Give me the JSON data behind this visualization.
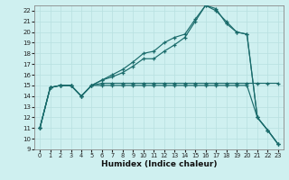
{
  "xlabel": "Humidex (Indice chaleur)",
  "ylabel": "",
  "bg_color": "#cff0f0",
  "line_color": "#1a6b6b",
  "grid_color": "#b8e0e0",
  "ylim": [
    9,
    22.5
  ],
  "xlim": [
    -0.5,
    23.5
  ],
  "yticks": [
    9,
    10,
    11,
    12,
    13,
    14,
    15,
    16,
    17,
    18,
    19,
    20,
    21,
    22
  ],
  "xticks": [
    0,
    1,
    2,
    3,
    4,
    5,
    6,
    7,
    8,
    9,
    10,
    11,
    12,
    13,
    14,
    15,
    16,
    17,
    18,
    19,
    20,
    21,
    22,
    23
  ],
  "series": [
    {
      "x": [
        0,
        1,
        2,
        3,
        4,
        5,
        6,
        7,
        8,
        9,
        10,
        11,
        12,
        13,
        14,
        15,
        16,
        17,
        18,
        19,
        20,
        21,
        22,
        23
      ],
      "y": [
        11,
        14.8,
        15.0,
        15.0,
        14.0,
        15.0,
        15.2,
        15.2,
        15.2,
        15.2,
        15.2,
        15.2,
        15.2,
        15.2,
        15.2,
        15.2,
        15.2,
        15.2,
        15.2,
        15.2,
        15.2,
        15.2,
        15.2,
        15.2
      ]
    },
    {
      "x": [
        0,
        1,
        2,
        3,
        4,
        5,
        6,
        7,
        8,
        9,
        10,
        11,
        12,
        13,
        14,
        15,
        16,
        17,
        18,
        19,
        20,
        21,
        22,
        23
      ],
      "y": [
        11,
        14.8,
        15.0,
        15.0,
        14.0,
        15.0,
        15.0,
        15.0,
        15.0,
        15.0,
        15.0,
        15.0,
        15.0,
        15.0,
        15.0,
        15.0,
        15.0,
        15.0,
        15.0,
        15.0,
        15.0,
        12.0,
        10.8,
        9.5
      ]
    },
    {
      "x": [
        0,
        1,
        2,
        3,
        4,
        5,
        6,
        7,
        8,
        9,
        10,
        11,
        12,
        13,
        14,
        15,
        16,
        17,
        18,
        19,
        20,
        21,
        22,
        23
      ],
      "y": [
        11,
        14.8,
        15.0,
        15.0,
        14.0,
        15.0,
        15.5,
        16.0,
        16.5,
        17.2,
        18.0,
        18.2,
        19.0,
        19.5,
        19.8,
        21.2,
        22.5,
        22.0,
        21.0,
        20.0,
        19.8,
        12.0,
        10.8,
        9.5
      ]
    },
    {
      "x": [
        0,
        1,
        2,
        3,
        4,
        5,
        6,
        7,
        8,
        9,
        10,
        11,
        12,
        13,
        14,
        15,
        16,
        17,
        18,
        19,
        20,
        21,
        22,
        23
      ],
      "y": [
        11,
        14.8,
        15.0,
        15.0,
        14.0,
        15.0,
        15.5,
        15.8,
        16.2,
        16.8,
        17.5,
        17.5,
        18.2,
        18.8,
        19.5,
        21.0,
        22.5,
        22.2,
        20.8,
        20.0,
        19.8,
        12.0,
        10.8,
        9.5
      ]
    }
  ]
}
